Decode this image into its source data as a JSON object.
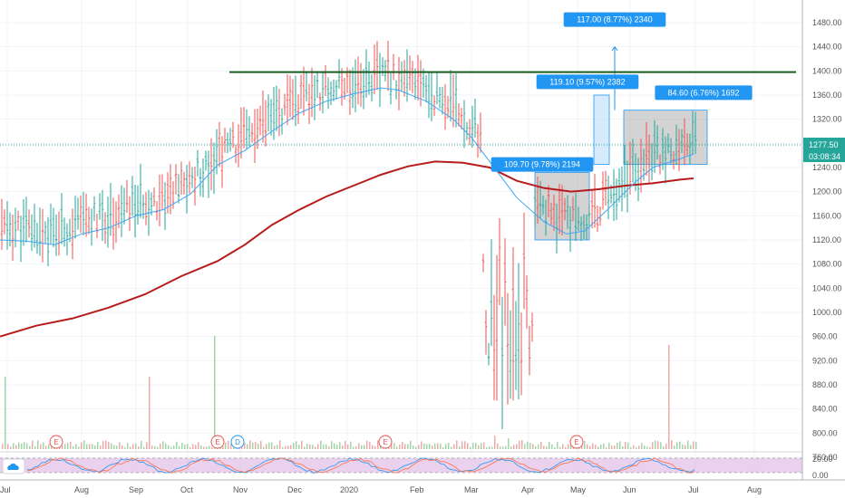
{
  "chart_data": {
    "type": "ohlc",
    "price_axis": {
      "ylim": [
        740,
        1500
      ],
      "ticks": [
        "1480.00",
        "1440.00",
        "1400.00",
        "1360.00",
        "1320.00",
        "1280.00",
        "1240.00",
        "1200.00",
        "1160.00",
        "1120.00",
        "1080.00",
        "1040.00",
        "1000.00",
        "960.00",
        "920.00",
        "880.00",
        "840.00",
        "800.00",
        "760.00"
      ]
    },
    "time_axis": {
      "ticks": [
        "Jul",
        "Aug",
        "Sep",
        "Oct",
        "Nov",
        "Dec",
        "2020",
        "Feb",
        "Mar",
        "Apr",
        "May",
        "Jun",
        "Jul",
        "Aug"
      ]
    },
    "last_price": {
      "value": 1277.5,
      "label": "1277.50",
      "timer": "03:08:34"
    },
    "resistance_level": 1398,
    "ma_long_points": [
      [
        0,
        960
      ],
      [
        40,
        978
      ],
      [
        80,
        990
      ],
      [
        120,
        1008
      ],
      [
        160,
        1030
      ],
      [
        200,
        1060
      ],
      [
        240,
        1085
      ],
      [
        270,
        1112
      ],
      [
        300,
        1145
      ],
      [
        330,
        1170
      ],
      [
        360,
        1192
      ],
      [
        390,
        1210
      ],
      [
        420,
        1228
      ],
      [
        450,
        1242
      ],
      [
        480,
        1250
      ],
      [
        510,
        1248
      ],
      [
        540,
        1240
      ],
      [
        570,
        1218
      ],
      [
        600,
        1206
      ],
      [
        630,
        1200
      ],
      [
        660,
        1204
      ],
      [
        690,
        1210
      ],
      [
        720,
        1214
      ],
      [
        750,
        1220
      ],
      [
        765,
        1222
      ]
    ],
    "ma_short_points": [
      [
        0,
        1120
      ],
      [
        30,
        1118
      ],
      [
        60,
        1112
      ],
      [
        90,
        1130
      ],
      [
        120,
        1140
      ],
      [
        150,
        1160
      ],
      [
        180,
        1170
      ],
      [
        210,
        1196
      ],
      [
        240,
        1244
      ],
      [
        270,
        1268
      ],
      [
        300,
        1300
      ],
      [
        330,
        1330
      ],
      [
        360,
        1350
      ],
      [
        390,
        1362
      ],
      [
        420,
        1372
      ],
      [
        440,
        1368
      ],
      [
        470,
        1350
      ],
      [
        500,
        1320
      ],
      [
        520,
        1290
      ],
      [
        540,
        1250
      ],
      [
        570,
        1190
      ],
      [
        600,
        1150
      ],
      [
        625,
        1130
      ],
      [
        645,
        1135
      ],
      [
        670,
        1170
      ],
      [
        700,
        1215
      ],
      [
        720,
        1240
      ],
      [
        745,
        1252
      ],
      [
        765,
        1262
      ]
    ],
    "measure_boxes": [
      {
        "x0": 590,
        "x1": 650,
        "y0": 1120,
        "y1": 1232,
        "style": "gray",
        "label": "109.70 (9.78%) 2194",
        "lx": 598,
        "ly": 1245
      },
      {
        "x0": 655,
        "x1": 672,
        "y0": 1245,
        "y1": 1360,
        "style": "blue",
        "label": "119.10 (9.57%) 2382",
        "lx": 648,
        "ly": 1382
      },
      {
        "x0": 688,
        "x1": 780,
        "y0": 1245,
        "y1": 1335,
        "style": "gray",
        "label": "84.60 (6.76%) 1692",
        "lx": 776,
        "ly": 1364
      },
      {
        "x0": 678,
        "x1": 678,
        "y0": 1335,
        "y1": 1440,
        "style": "arrow",
        "label": "117.00 (8.77%) 2340",
        "lx": 678,
        "ly": 1485
      }
    ],
    "events": [
      {
        "label": "E",
        "x": 62
      },
      {
        "label": "E",
        "x": 240
      },
      {
        "label": "D",
        "x": 262
      },
      {
        "label": "E",
        "x": 425
      },
      {
        "label": "E",
        "x": 636
      }
    ],
    "oscillator": {
      "ticks": [
        "20.00",
        "0.00"
      ]
    }
  }
}
